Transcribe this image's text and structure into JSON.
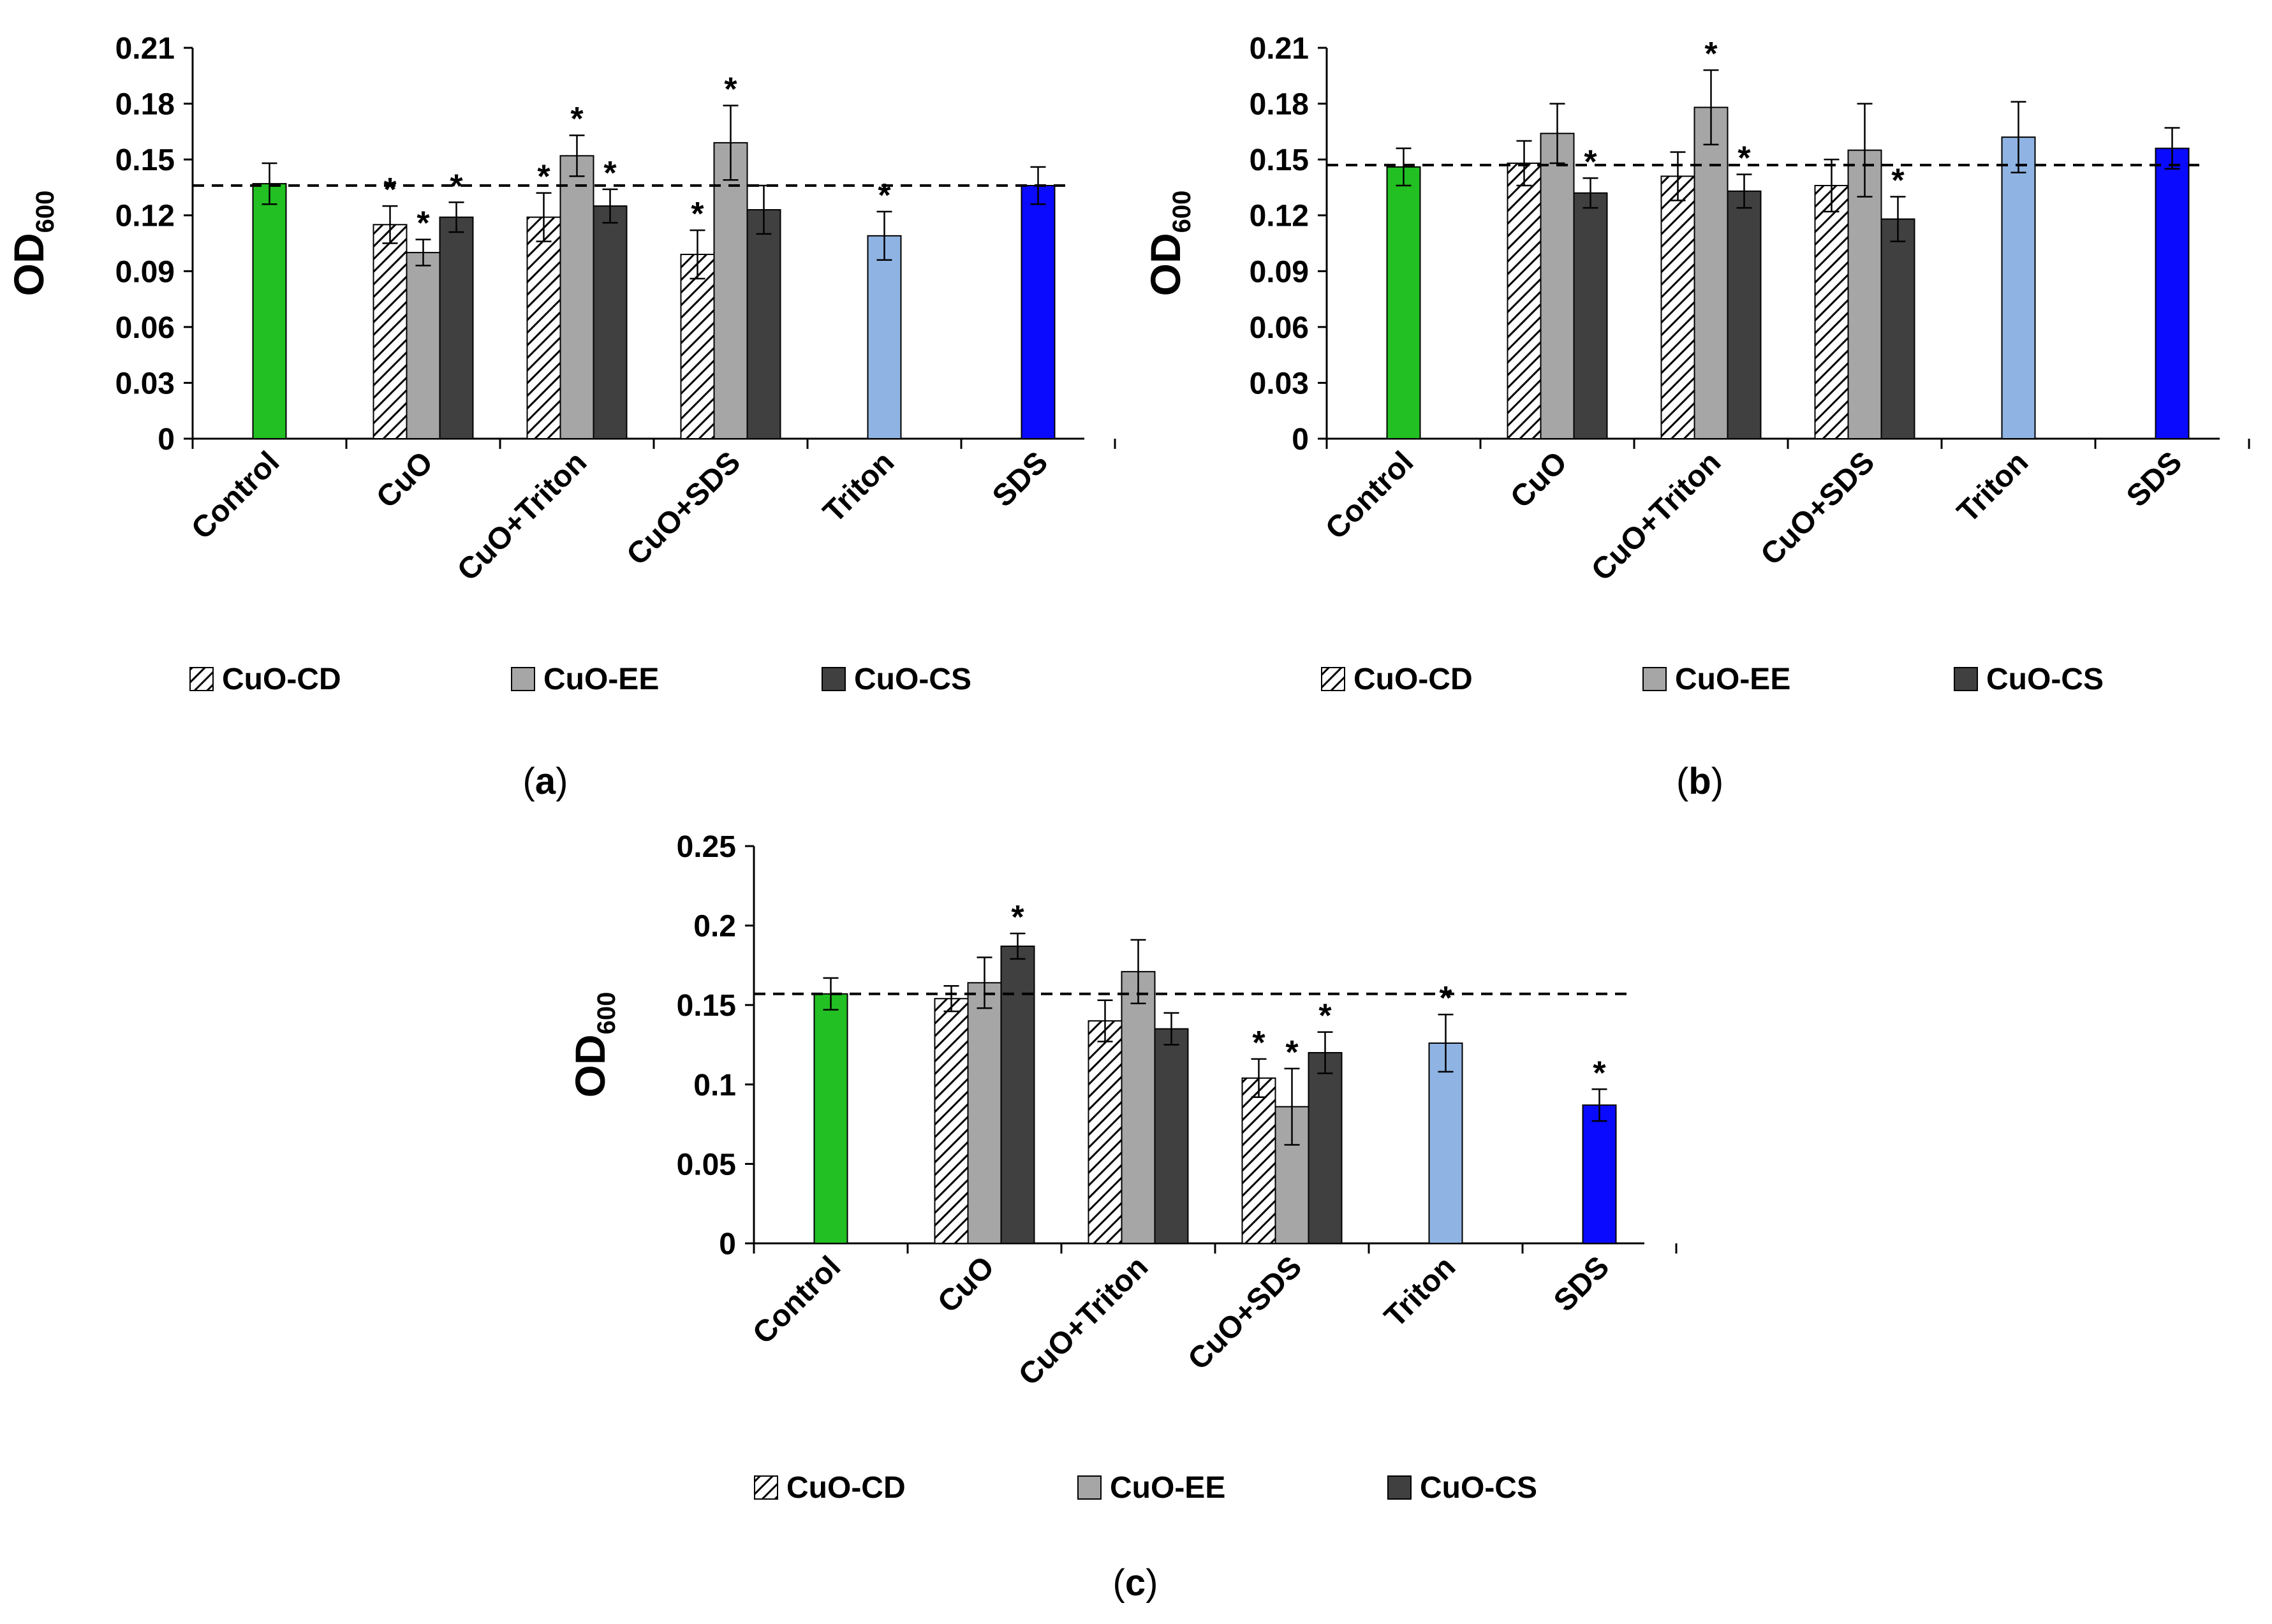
{
  "chart_data": [
    {
      "panel": "a",
      "panel_label": {
        "open": "(",
        "letter": "a",
        "close": ")"
      },
      "type": "bar",
      "ylabel": "OD",
      "ylabel_sub": "600",
      "ylim": [
        0,
        0.21
      ],
      "yticks": [
        "0",
        "0.03",
        "0.06",
        "0.09",
        "0.12",
        "0.15",
        "0.18",
        "0.21"
      ],
      "control_reference_line": 0.136,
      "groups": [
        {
          "category": "Control",
          "bars": [
            {
              "style": "control",
              "value": 0.137,
              "err": 0.011,
              "sig": false
            }
          ]
        },
        {
          "category": "CuO",
          "bars": [
            {
              "series": "CuO-CD",
              "value": 0.115,
              "err": 0.01,
              "sig": true
            },
            {
              "series": "CuO-EE",
              "value": 0.1,
              "err": 0.007,
              "sig": true
            },
            {
              "series": "CuO-CS",
              "value": 0.119,
              "err": 0.008,
              "sig": true
            }
          ]
        },
        {
          "category": "CuO+Triton",
          "bars": [
            {
              "series": "CuO-CD",
              "value": 0.119,
              "err": 0.013,
              "sig": true
            },
            {
              "series": "CuO-EE",
              "value": 0.152,
              "err": 0.011,
              "sig": true
            },
            {
              "series": "CuO-CS",
              "value": 0.125,
              "err": 0.009,
              "sig": true
            }
          ]
        },
        {
          "category": "CuO+SDS",
          "bars": [
            {
              "series": "CuO-CD",
              "value": 0.099,
              "err": 0.013,
              "sig": true
            },
            {
              "series": "CuO-EE",
              "value": 0.159,
              "err": 0.02,
              "sig": true
            },
            {
              "series": "CuO-CS",
              "value": 0.123,
              "err": 0.013,
              "sig": false
            }
          ]
        },
        {
          "category": "Triton",
          "bars": [
            {
              "style": "triton",
              "value": 0.109,
              "err": 0.013,
              "sig": true
            }
          ]
        },
        {
          "category": "SDS",
          "bars": [
            {
              "style": "sds",
              "value": 0.136,
              "err": 0.01,
              "sig": false
            }
          ]
        }
      ]
    },
    {
      "panel": "b",
      "panel_label": {
        "open": "(",
        "letter": "b",
        "close": ")"
      },
      "type": "bar",
      "ylabel": "OD",
      "ylabel_sub": "600",
      "ylim": [
        0,
        0.21
      ],
      "yticks": [
        "0",
        "0.03",
        "0.06",
        "0.09",
        "0.12",
        "0.15",
        "0.18",
        "0.21"
      ],
      "control_reference_line": 0.147,
      "groups": [
        {
          "category": "Control",
          "bars": [
            {
              "style": "control",
              "value": 0.146,
              "err": 0.01,
              "sig": false
            }
          ]
        },
        {
          "category": "CuO",
          "bars": [
            {
              "series": "CuO-CD",
              "value": 0.148,
              "err": 0.012,
              "sig": false
            },
            {
              "series": "CuO-EE",
              "value": 0.164,
              "err": 0.016,
              "sig": false
            },
            {
              "series": "CuO-CS",
              "value": 0.132,
              "err": 0.008,
              "sig": true
            }
          ]
        },
        {
          "category": "CuO+Triton",
          "bars": [
            {
              "series": "CuO-CD",
              "value": 0.141,
              "err": 0.013,
              "sig": false
            },
            {
              "series": "CuO-EE",
              "value": 0.178,
              "err": 0.02,
              "sig": true
            },
            {
              "series": "CuO-CS",
              "value": 0.133,
              "err": 0.009,
              "sig": true
            }
          ]
        },
        {
          "category": "CuO+SDS",
          "bars": [
            {
              "series": "CuO-CD",
              "value": 0.136,
              "err": 0.014,
              "sig": false
            },
            {
              "series": "CuO-EE",
              "value": 0.155,
              "err": 0.025,
              "sig": false
            },
            {
              "series": "CuO-CS",
              "value": 0.118,
              "err": 0.012,
              "sig": true
            }
          ]
        },
        {
          "category": "Triton",
          "bars": [
            {
              "style": "triton",
              "value": 0.162,
              "err": 0.019,
              "sig": false
            }
          ]
        },
        {
          "category": "SDS",
          "bars": [
            {
              "style": "sds",
              "value": 0.156,
              "err": 0.011,
              "sig": false
            }
          ]
        }
      ]
    },
    {
      "panel": "c",
      "panel_label": {
        "open": "(",
        "letter": "c",
        "close": ")"
      },
      "type": "bar",
      "ylabel": "OD",
      "ylabel_sub": "600",
      "ylim": [
        0,
        0.25
      ],
      "yticks": [
        "0",
        "0.05",
        "0.1",
        "0.15",
        "0.2",
        "0.25"
      ],
      "control_reference_line": 0.157,
      "groups": [
        {
          "category": "Control",
          "bars": [
            {
              "style": "control",
              "value": 0.157,
              "err": 0.01,
              "sig": false
            }
          ]
        },
        {
          "category": "CuO",
          "bars": [
            {
              "series": "CuO-CD",
              "value": 0.154,
              "err": 0.008,
              "sig": false
            },
            {
              "series": "CuO-EE",
              "value": 0.164,
              "err": 0.016,
              "sig": false
            },
            {
              "series": "CuO-CS",
              "value": 0.187,
              "err": 0.008,
              "sig": true
            }
          ]
        },
        {
          "category": "CuO+Triton",
          "bars": [
            {
              "series": "CuO-CD",
              "value": 0.14,
              "err": 0.013,
              "sig": false
            },
            {
              "series": "CuO-EE",
              "value": 0.171,
              "err": 0.02,
              "sig": false
            },
            {
              "series": "CuO-CS",
              "value": 0.135,
              "err": 0.01,
              "sig": false
            }
          ]
        },
        {
          "category": "CuO+SDS",
          "bars": [
            {
              "series": "CuO-CD",
              "value": 0.104,
              "err": 0.012,
              "sig": true
            },
            {
              "series": "CuO-EE",
              "value": 0.086,
              "err": 0.024,
              "sig": true
            },
            {
              "series": "CuO-CS",
              "value": 0.12,
              "err": 0.013,
              "sig": true
            }
          ]
        },
        {
          "category": "Triton",
          "bars": [
            {
              "style": "triton",
              "value": 0.126,
              "err": 0.018,
              "sig": true
            }
          ]
        },
        {
          "category": "SDS",
          "bars": [
            {
              "style": "sds",
              "value": 0.087,
              "err": 0.01,
              "sig": true
            }
          ]
        }
      ]
    }
  ],
  "legend": [
    {
      "label": "CuO-CD",
      "style": "hatched"
    },
    {
      "label": "CuO-EE",
      "style": "light-gray"
    },
    {
      "label": "CuO-CS",
      "style": "dark-gray"
    }
  ],
  "significance_marker": "*",
  "colors": {
    "control": "#22c022",
    "triton": "#8fb4e3",
    "sds": "#0a0aff",
    "cuo_ee": "#a6a6a6",
    "cuo_cs": "#404040",
    "hatch": "#000000",
    "axis": "#000000",
    "reference_line": "#000000"
  },
  "series_style": {
    "CuO-CD": "hatched",
    "CuO-EE": "light-gray",
    "CuO-CS": "dark-gray"
  }
}
